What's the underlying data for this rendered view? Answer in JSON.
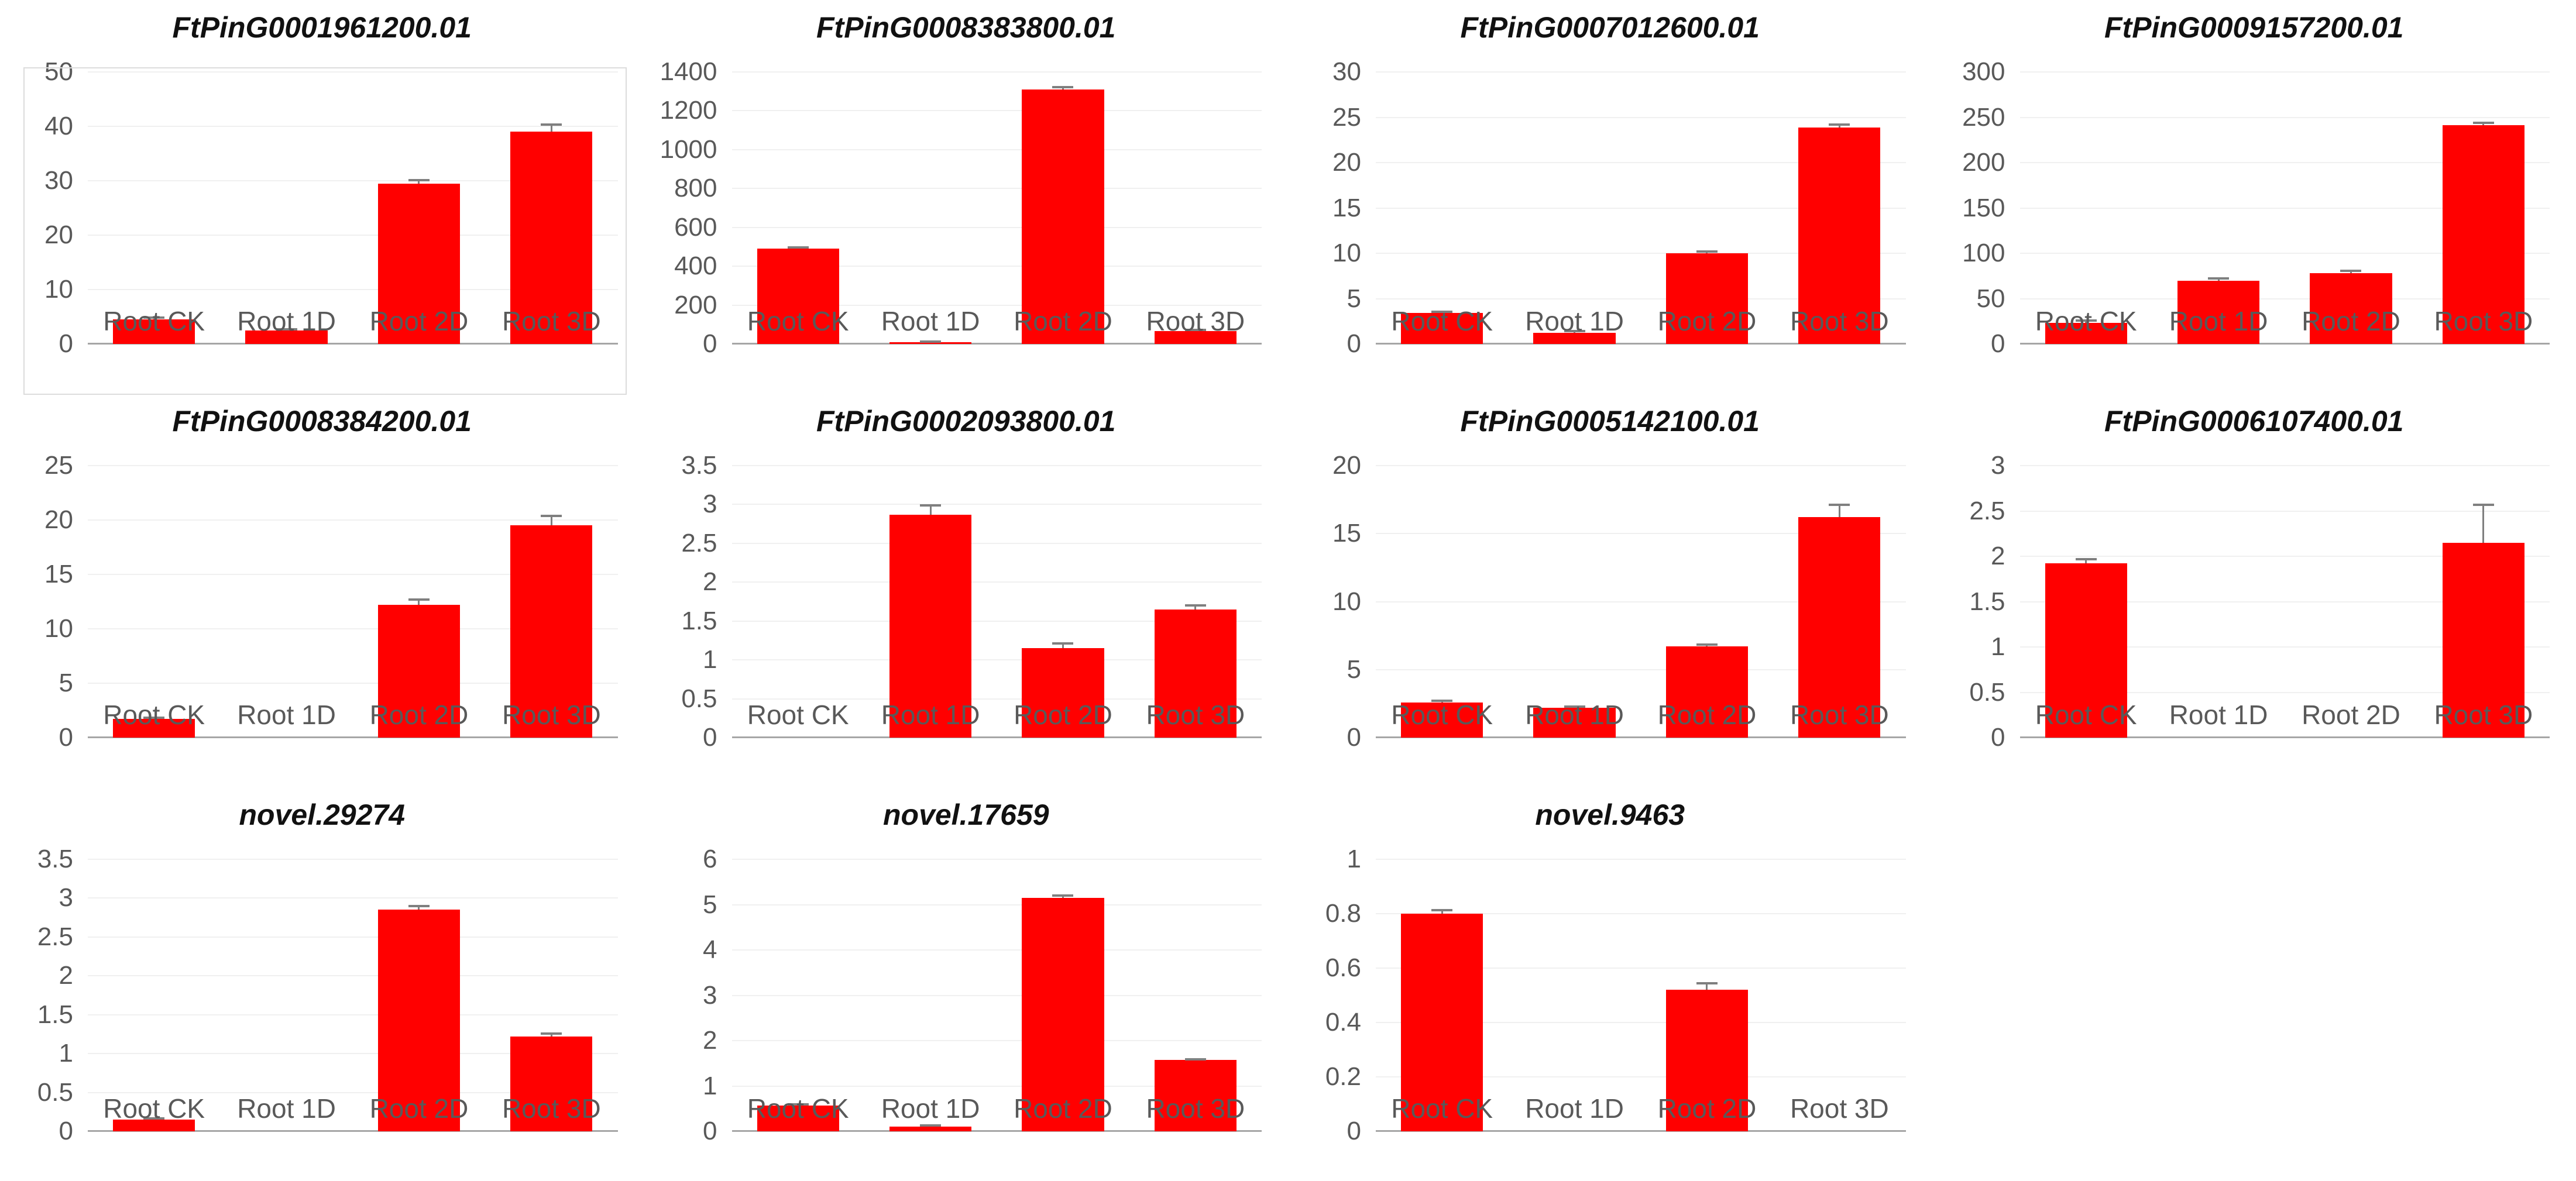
{
  "page": {
    "background": "#ffffff"
  },
  "colors": {
    "bar": "#ff0000",
    "gridline": "#f0f0f0",
    "axis_line": "#a6a6a6",
    "tick_text": "#595959",
    "title_text": "#111111",
    "error_bar": "#7f7f7f",
    "selection_border": "#dcdcdc"
  },
  "layout": {
    "columns": 4,
    "rows": 3,
    "legend": "none",
    "grid": "horizontal-only"
  },
  "chart_data": [
    {
      "type": "bar",
      "title": "FtPinG0001961200.01",
      "categories": [
        "Root CK",
        "Root 1D",
        "Root 2D",
        "Root 3D"
      ],
      "values": [
        4.5,
        2.5,
        29.5,
        39
      ],
      "errors": [
        0.3,
        0.2,
        0.6,
        1.3
      ],
      "ylim": [
        0,
        50
      ],
      "tick_values": [
        0,
        10,
        20,
        30,
        40,
        50
      ],
      "tick_labels": [
        "0",
        "10",
        "20",
        "30",
        "40",
        "50"
      ],
      "selected": true
    },
    {
      "type": "bar",
      "title": "FtPinG0008383800.01",
      "categories": [
        "Root CK",
        "Root 1D",
        "Root 2D",
        "Root 3D"
      ],
      "values": [
        490,
        8,
        1310,
        65
      ],
      "errors": [
        8,
        3,
        12,
        6
      ],
      "ylim": [
        0,
        1400
      ],
      "tick_values": [
        0,
        200,
        400,
        600,
        800,
        1000,
        1200,
        1400
      ],
      "tick_labels": [
        "0",
        "200",
        "400",
        "600",
        "800",
        "1000",
        "1200",
        "1400"
      ],
      "selected": false
    },
    {
      "type": "bar",
      "title": "FtPinG0007012600.01",
      "categories": [
        "Root CK",
        "Root 1D",
        "Root 2D",
        "Root 3D"
      ],
      "values": [
        3.4,
        1.2,
        10,
        23.9
      ],
      "errors": [
        0.15,
        0.25,
        0.2,
        0.3
      ],
      "ylim": [
        0,
        30
      ],
      "tick_values": [
        0,
        5,
        10,
        15,
        20,
        25,
        30
      ],
      "tick_labels": [
        "0",
        "5",
        "10",
        "15",
        "20",
        "25",
        "30"
      ],
      "selected": false
    },
    {
      "type": "bar",
      "title": "FtPinG0009157200.01",
      "categories": [
        "Root CK",
        "Root 1D",
        "Root 2D",
        "Root 3D"
      ],
      "values": [
        23,
        70,
        78,
        241
      ],
      "errors": [
        2.5,
        2,
        2.5,
        3
      ],
      "ylim": [
        0,
        300
      ],
      "tick_values": [
        0,
        50,
        100,
        150,
        200,
        250,
        300
      ],
      "tick_labels": [
        "0",
        "50",
        "100",
        "150",
        "200",
        "250",
        "300"
      ],
      "selected": false
    },
    {
      "type": "bar",
      "title": "FtPinG0008384200.01",
      "categories": [
        "Root CK",
        "Root 1D",
        "Root 2D",
        "Root 3D"
      ],
      "values": [
        1.7,
        0,
        12.2,
        19.5
      ],
      "errors": [
        0.15,
        0,
        0.5,
        0.9
      ],
      "ylim": [
        0,
        25
      ],
      "tick_values": [
        0,
        5,
        10,
        15,
        20,
        25
      ],
      "tick_labels": [
        "0",
        "5",
        "10",
        "15",
        "20",
        "25"
      ],
      "selected": false
    },
    {
      "type": "bar",
      "title": "FtPinG0002093800.01",
      "categories": [
        "Root CK",
        "Root 1D",
        "Root 2D",
        "Root 3D"
      ],
      "values": [
        0,
        2.87,
        1.15,
        1.65
      ],
      "errors": [
        0,
        0.12,
        0.06,
        0.05
      ],
      "ylim": [
        0,
        3.5
      ],
      "tick_values": [
        0,
        0.5,
        1,
        1.5,
        2,
        2.5,
        3,
        3.5
      ],
      "tick_labels": [
        "0",
        "0.5",
        "1",
        "1.5",
        "2",
        "2.5",
        "3",
        "3.5"
      ],
      "selected": false
    },
    {
      "type": "bar",
      "title": "FtPinG0005142100.01",
      "categories": [
        "Root CK",
        "Root 1D",
        "Root 2D",
        "Root 3D"
      ],
      "values": [
        2.6,
        2.2,
        6.7,
        16.2
      ],
      "errors": [
        0.12,
        0.08,
        0.12,
        0.9
      ],
      "ylim": [
        0,
        20
      ],
      "tick_values": [
        0,
        5,
        10,
        15,
        20
      ],
      "tick_labels": [
        "0",
        "5",
        "10",
        "15",
        "20"
      ],
      "selected": false
    },
    {
      "type": "bar",
      "title": "FtPinG0006107400.01",
      "categories": [
        "Root CK",
        "Root 1D",
        "Root 2D",
        "Root 3D"
      ],
      "values": [
        1.92,
        0,
        0,
        2.15
      ],
      "errors": [
        0.05,
        0,
        0,
        0.42
      ],
      "ylim": [
        0,
        3
      ],
      "tick_values": [
        0,
        0.5,
        1,
        1.5,
        2,
        2.5,
        3
      ],
      "tick_labels": [
        "0",
        "0.5",
        "1",
        "1.5",
        "2",
        "2.5",
        "3"
      ],
      "selected": false
    },
    {
      "type": "bar",
      "title": "novel.29274",
      "categories": [
        "Root CK",
        "Root 1D",
        "Root 2D",
        "Root 3D"
      ],
      "values": [
        0.15,
        0,
        2.85,
        1.22
      ],
      "errors": [
        0.015,
        0,
        0.05,
        0.04
      ],
      "ylim": [
        0,
        3.5
      ],
      "tick_values": [
        0,
        0.5,
        1,
        1.5,
        2,
        2.5,
        3,
        3.5
      ],
      "tick_labels": [
        "0",
        "0.5",
        "1",
        "1.5",
        "2",
        "2.5",
        "3",
        "3.5"
      ],
      "selected": false
    },
    {
      "type": "bar",
      "title": "novel.17659",
      "categories": [
        "Root CK",
        "Root 1D",
        "Root 2D",
        "Root 3D"
      ],
      "values": [
        0.57,
        0.1,
        5.15,
        1.57
      ],
      "errors": [
        0.02,
        0.03,
        0.05,
        0.02
      ],
      "ylim": [
        0,
        6
      ],
      "tick_values": [
        0,
        1,
        2,
        3,
        4,
        5,
        6
      ],
      "tick_labels": [
        "0",
        "1",
        "2",
        "3",
        "4",
        "5",
        "6"
      ],
      "selected": false
    },
    {
      "type": "bar",
      "title": "novel.9463",
      "categories": [
        "Root CK",
        "Root 1D",
        "Root 2D",
        "Root 3D"
      ],
      "values": [
        0.8,
        0,
        0.52,
        0
      ],
      "errors": [
        0.012,
        0,
        0.025,
        0
      ],
      "ylim": [
        0,
        1
      ],
      "tick_values": [
        0,
        0.2,
        0.4,
        0.6,
        0.8,
        1
      ],
      "tick_labels": [
        "0",
        "0.2",
        "0.4",
        "0.6",
        "0.8",
        "1"
      ],
      "selected": false
    }
  ]
}
